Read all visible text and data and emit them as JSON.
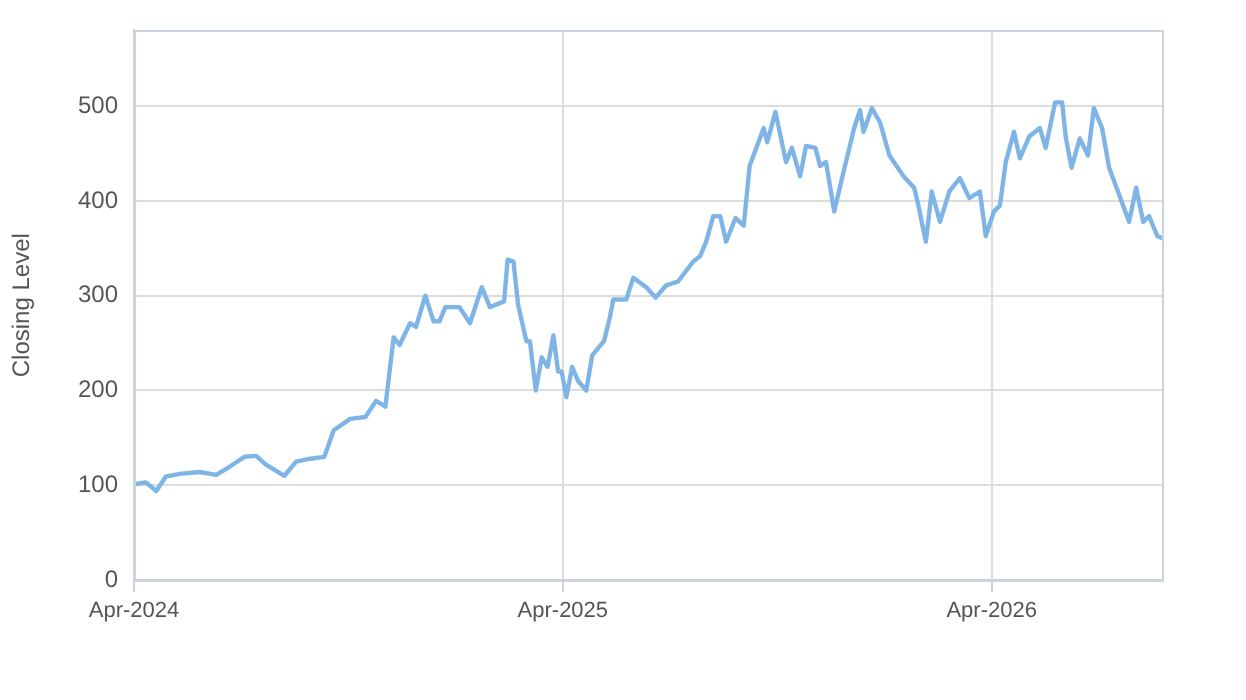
{
  "chart_data": {
    "type": "line",
    "ylabel": "Closing Level",
    "x": [
      "2024-04-01",
      "2024-04-11",
      "2024-04-20",
      "2024-04-28",
      "2024-05-10",
      "2024-05-27",
      "2024-06-10",
      "2024-06-22",
      "2024-07-04",
      "2024-07-14",
      "2024-07-22",
      "2024-08-07",
      "2024-08-17",
      "2024-08-29",
      "2024-09-10",
      "2024-09-18",
      "2024-10-02",
      "2024-10-15",
      "2024-10-24",
      "2024-11-01",
      "2024-11-08",
      "2024-11-13",
      "2024-11-22",
      "2024-11-27",
      "2024-12-05",
      "2024-12-12",
      "2024-12-17",
      "2024-12-22",
      "2025-01-03",
      "2025-01-12",
      "2025-01-22",
      "2025-01-29",
      "2025-02-10",
      "2025-02-13",
      "2025-02-18",
      "2025-02-22",
      "2025-03-01",
      "2025-03-04",
      "2025-03-09",
      "2025-03-14",
      "2025-03-19",
      "2025-03-24",
      "2025-03-28",
      "2025-03-31",
      "2025-04-04",
      "2025-04-09",
      "2025-04-14",
      "2025-04-21",
      "2025-04-26",
      "2025-05-06",
      "2025-05-11",
      "2025-05-14",
      "2025-05-25",
      "2025-05-31",
      "2025-06-11",
      "2025-06-19",
      "2025-06-28",
      "2025-07-08",
      "2025-07-21",
      "2025-07-27",
      "2025-08-01",
      "2025-08-07",
      "2025-08-13",
      "2025-08-18",
      "2025-08-26",
      "2025-09-02",
      "2025-09-07",
      "2025-09-19",
      "2025-09-22",
      "2025-09-29",
      "2025-10-08",
      "2025-10-13",
      "2025-10-20",
      "2025-10-25",
      "2025-11-02",
      "2025-11-06",
      "2025-11-11",
      "2025-11-18",
      "2025-11-26",
      "2025-12-05",
      "2025-12-10",
      "2025-12-13",
      "2025-12-20",
      "2025-12-27",
      "2026-01-04",
      "2026-01-16",
      "2026-01-25",
      "2026-01-28",
      "2026-02-04",
      "2026-02-09",
      "2026-02-16",
      "2026-02-24",
      "2026-03-05",
      "2026-03-13",
      "2026-03-22",
      "2026-03-27",
      "2026-04-03",
      "2026-04-08",
      "2026-04-13",
      "2026-04-20",
      "2026-04-25",
      "2026-05-03",
      "2026-05-12",
      "2026-05-17",
      "2026-05-25",
      "2026-05-31",
      "2026-06-03",
      "2026-06-08",
      "2026-06-15",
      "2026-06-22",
      "2026-06-27",
      "2026-07-04",
      "2026-07-10",
      "2026-07-19",
      "2026-07-27",
      "2026-08-02",
      "2026-08-08",
      "2026-08-13",
      "2026-08-20",
      "2026-08-24"
    ],
    "series": [
      {
        "color": "#7eb5e6",
        "values": [
          101,
          103,
          94,
          109,
          112,
          114,
          111,
          120,
          130,
          131,
          122,
          110,
          125,
          128,
          130,
          158,
          170,
          172,
          189,
          183,
          256,
          248,
          271,
          267,
          300,
          273,
          273,
          288,
          288,
          271,
          309,
          288,
          294,
          338,
          336,
          290,
          252,
          252,
          200,
          235,
          225,
          258,
          220,
          220,
          193,
          225,
          210,
          200,
          237,
          252,
          277,
          296,
          296,
          319,
          309,
          298,
          311,
          315,
          336,
          342,
          357,
          384,
          384,
          357,
          382,
          374,
          437,
          477,
          462,
          494,
          441,
          456,
          426,
          458,
          456,
          437,
          441,
          389,
          431,
          477,
          496,
          473,
          498,
          483,
          448,
          426,
          414,
          399,
          357,
          410,
          378,
          410,
          424,
          403,
          410,
          363,
          389,
          395,
          441,
          473,
          445,
          468,
          477,
          456,
          504,
          504,
          468,
          435,
          466,
          448,
          498,
          477,
          435,
          405,
          378,
          414,
          378,
          384,
          363,
          361
        ]
      }
    ],
    "xlim": [
      "2024-04-01",
      "2026-08-24"
    ],
    "xticks": [
      {
        "value": "2024-04-01",
        "label": "Apr-2024"
      },
      {
        "value": "2025-04-01",
        "label": "Apr-2025"
      },
      {
        "value": "2026-04-01",
        "label": "Apr-2026"
      }
    ],
    "ylim": [
      0,
      580
    ],
    "yticks": [
      0,
      100,
      200,
      300,
      400,
      500
    ],
    "grid": true,
    "legend": false,
    "marker": "none",
    "line_style": "solid"
  }
}
